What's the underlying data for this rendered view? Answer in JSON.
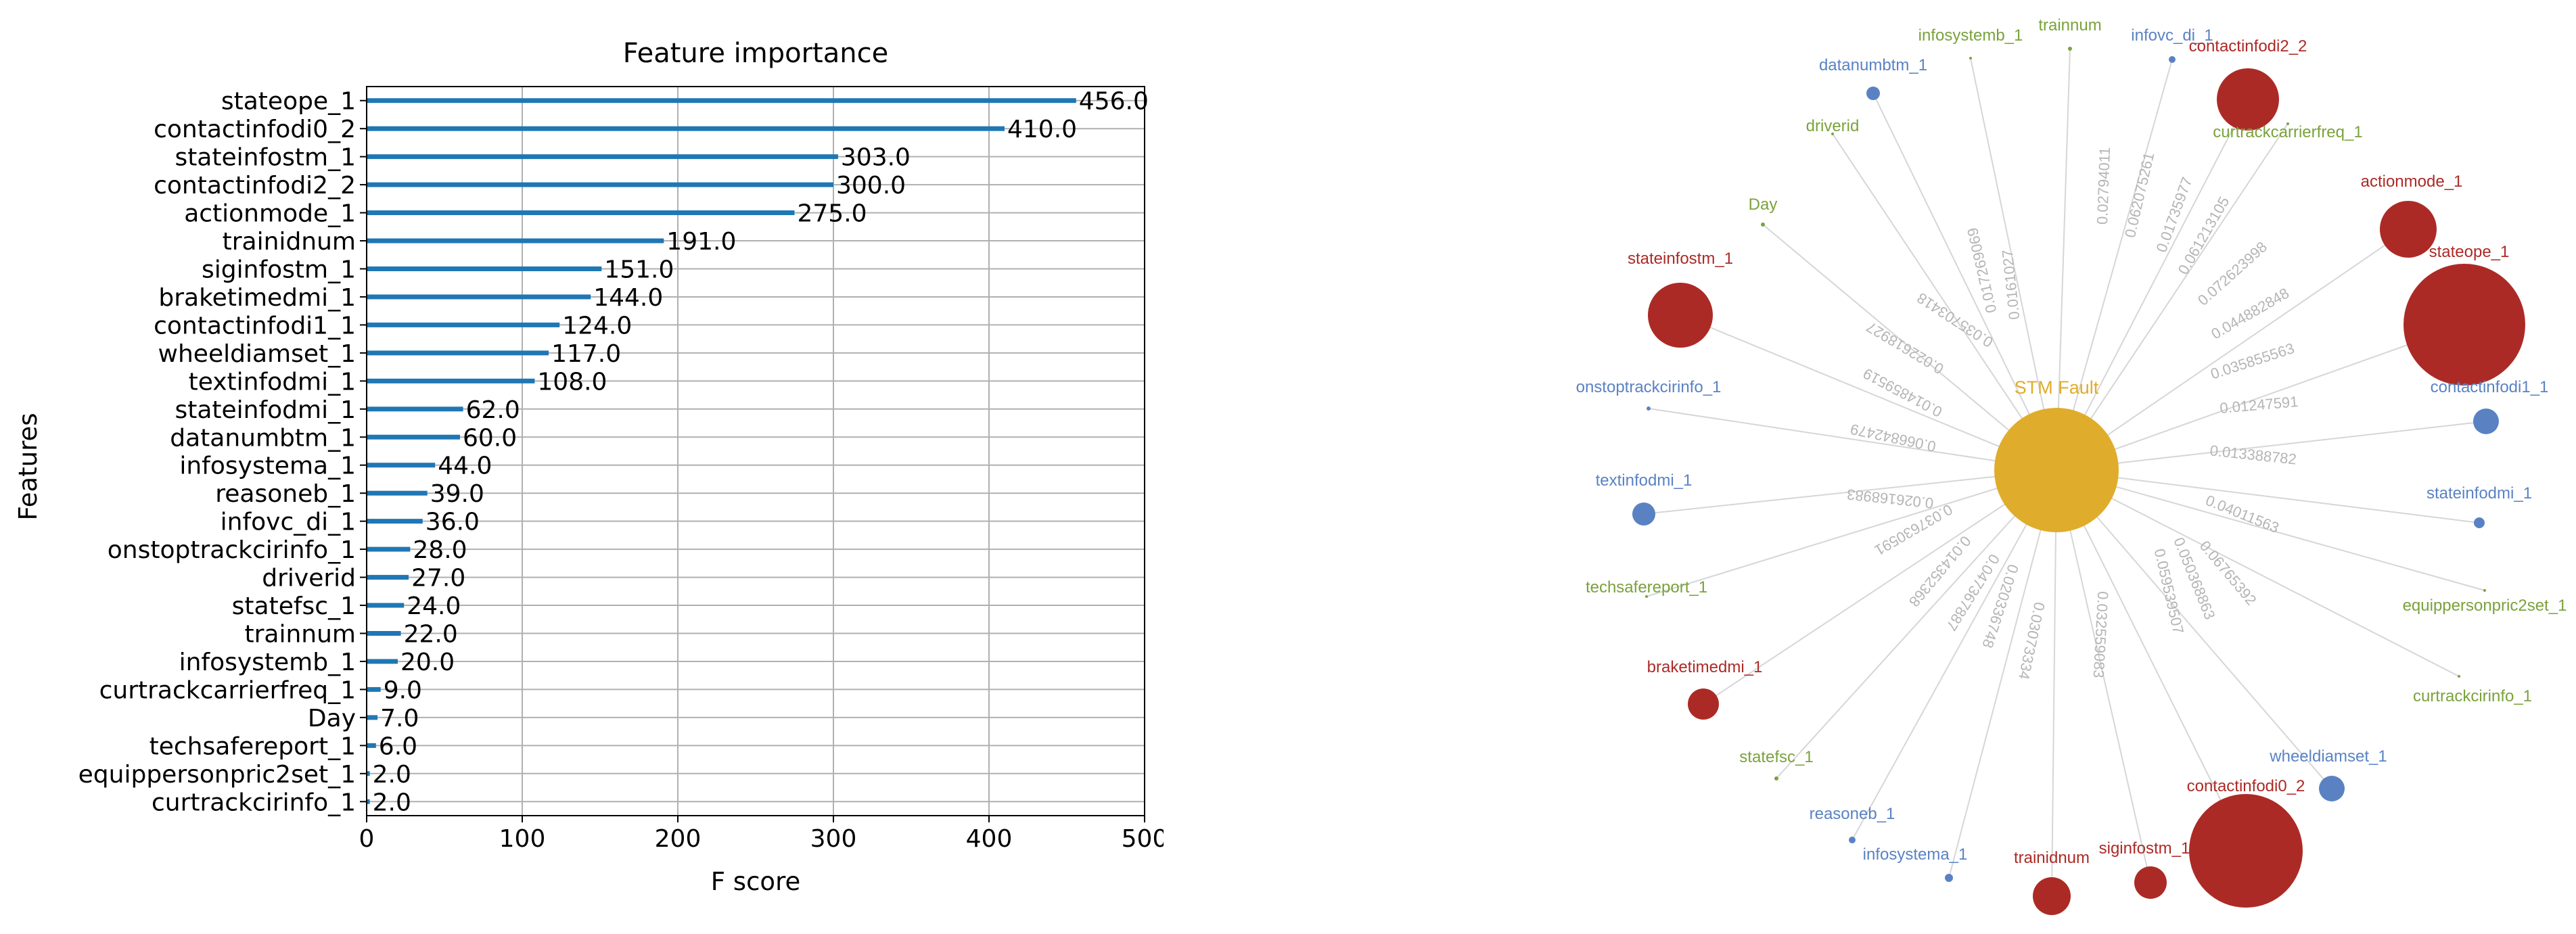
{
  "chart_data": [
    {
      "type": "bar",
      "orientation": "horizontal",
      "title": "Feature importance",
      "xlabel": "F score",
      "ylabel": "Features",
      "xlim": [
        0,
        500
      ],
      "xticks": [
        "0",
        "100",
        "200",
        "300",
        "400",
        "500"
      ],
      "grid": true,
      "bar_color": "#1f77b4",
      "categories": [
        "stateope_1",
        "contactinfodi0_2",
        "stateinfostm_1",
        "contactinfodi2_2",
        "actionmode_1",
        "trainidnum",
        "siginfostm_1",
        "braketimedmi_1",
        "contactinfodi1_1",
        "wheeldiamset_1",
        "textinfodmi_1",
        "stateinfodmi_1",
        "datanumbtm_1",
        "infosystema_1",
        "reasoneb_1",
        "infovc_di_1",
        "onstoptrackcirinfo_1",
        "driverid",
        "statefsc_1",
        "trainnum",
        "infosystemb_1",
        "curtrackcarrierfreq_1",
        "Day",
        "techsafereport_1",
        "equippersonpric2set_1",
        "curtrackcirinfo_1"
      ],
      "values": [
        456.0,
        410.0,
        303.0,
        300.0,
        275.0,
        191.0,
        151.0,
        144.0,
        124.0,
        117.0,
        108.0,
        62.0,
        60.0,
        44.0,
        39.0,
        36.0,
        28.0,
        27.0,
        24.0,
        22.0,
        20.0,
        9.0,
        7.0,
        6.0,
        2.0,
        2.0
      ],
      "value_labels": [
        "456.0",
        "410.0",
        "303.0",
        "300.0",
        "275.0",
        "191.0",
        "151.0",
        "144.0",
        "124.0",
        "117.0",
        "108.0",
        "62.0",
        "60.0",
        "44.0",
        "39.0",
        "36.0",
        "28.0",
        "27.0",
        "24.0",
        "22.0",
        "20.0",
        "9.0",
        "7.0",
        "6.0",
        "2.0",
        "2.0"
      ]
    },
    {
      "type": "network",
      "center": {
        "label": "STM Fault",
        "color": "#e0ac2b"
      },
      "colors": {
        "red": "#ac2a26",
        "blue": "#5a82c3",
        "green": "#7aa23c",
        "edge": "#d6d6d6",
        "weight": "#b5b5b5"
      },
      "nodes": [
        {
          "label": "trainnum",
          "color": "green",
          "weight": "0.02794011"
        },
        {
          "label": "infovc_di_1",
          "color": "blue",
          "weight": "0.062075261"
        },
        {
          "label": "contactinfodi2_2",
          "color": "red",
          "weight": "0.01735977"
        },
        {
          "label": "curtrackcarrierfreq_1",
          "color": "green",
          "weight": "0.061213105"
        },
        {
          "label": "actionmode_1",
          "color": "red",
          "weight": "0.072623998"
        },
        {
          "label": "stateope_1",
          "color": "red",
          "weight": "0.044882848"
        },
        {
          "label": "contactinfodi1_1",
          "color": "blue",
          "weight": "0.035855563"
        },
        {
          "label": "stateinfodmi_1",
          "color": "blue",
          "weight": "0.01247591"
        },
        {
          "label": "equippersonpric2set_1",
          "color": "green",
          "weight": "0.013388782"
        },
        {
          "label": "curtrackcirinfo_1",
          "color": "green",
          "weight": "0.04011563"
        },
        {
          "label": "wheeldiamset_1",
          "color": "blue",
          "weight": "0.06765392"
        },
        {
          "label": "contactinfodi0_2",
          "color": "red",
          "weight": "0.050368863"
        },
        {
          "label": "siginfostm_1",
          "color": "red",
          "weight": "0.059539507"
        },
        {
          "label": "trainidnum",
          "color": "red",
          "weight": "0.032559083"
        },
        {
          "label": "infosystema_1",
          "color": "blue",
          "weight": "0.03073334"
        },
        {
          "label": "reasoneb_1",
          "color": "blue",
          "weight": "0.020336748"
        },
        {
          "label": "statefsc_1",
          "color": "green",
          "weight": "0.047367887"
        },
        {
          "label": "braketimedmi_1",
          "color": "red",
          "weight": "0.014352368"
        },
        {
          "label": "techsafereport_1",
          "color": "green",
          "weight": "0.037630591"
        },
        {
          "label": "textinfodmi_1",
          "color": "blue",
          "weight": "0.026168983"
        },
        {
          "label": "onstoptrackcirinfo_1",
          "color": "blue",
          "weight": "0.066842479"
        },
        {
          "label": "stateinfostm_1",
          "color": "red",
          "weight": "0.014859519"
        },
        {
          "label": "Day",
          "color": "green",
          "weight": "0.022618927"
        },
        {
          "label": "driverid",
          "color": "green",
          "weight": "0.035703418"
        },
        {
          "label": "datanumbtm_1",
          "color": "blue",
          "weight": "0.017269069"
        },
        {
          "label": "infosystemb_1",
          "color": "green",
          "weight": "0.0161027"
        }
      ]
    }
  ]
}
